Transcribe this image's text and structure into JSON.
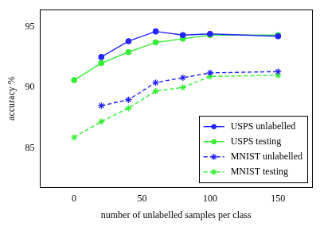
{
  "chart_data": {
    "type": "line",
    "x_label": "number of unlabelled samples per class",
    "y_label": "accuracy %",
    "x": [
      0,
      20,
      40,
      60,
      80,
      100,
      150
    ],
    "series": [
      {
        "name": "USPS unlabelled",
        "color": "#2323ff",
        "marker": "circle",
        "line_style": "solid",
        "values": [
          null,
          92.5,
          93.8,
          94.6,
          94.3,
          94.4,
          94.2
        ]
      },
      {
        "name": "USPS testing",
        "color": "#33ee33",
        "marker": "circle",
        "line_style": "solid",
        "values": [
          90.6,
          92.0,
          92.9,
          93.7,
          94.0,
          94.3,
          94.3
        ]
      },
      {
        "name": "MNIST unlabelled",
        "color": "#2323ff",
        "marker": "star",
        "line_style": "dashed",
        "values": [
          null,
          88.5,
          89.0,
          90.4,
          90.8,
          91.2,
          91.3
        ]
      },
      {
        "name": "MNIST testing",
        "color": "#33ee33",
        "marker": "star",
        "line_style": "dashed",
        "values": [
          85.9,
          87.2,
          88.3,
          89.7,
          90.0,
          90.9,
          91.0
        ]
      }
    ],
    "xlim": [
      -25,
      175
    ],
    "xticks": [
      0,
      50,
      100,
      150
    ],
    "ylim": [
      81.8,
      96.4
    ],
    "yticks": [
      85,
      90,
      95
    ],
    "grid": false,
    "legend": "bottom right"
  }
}
